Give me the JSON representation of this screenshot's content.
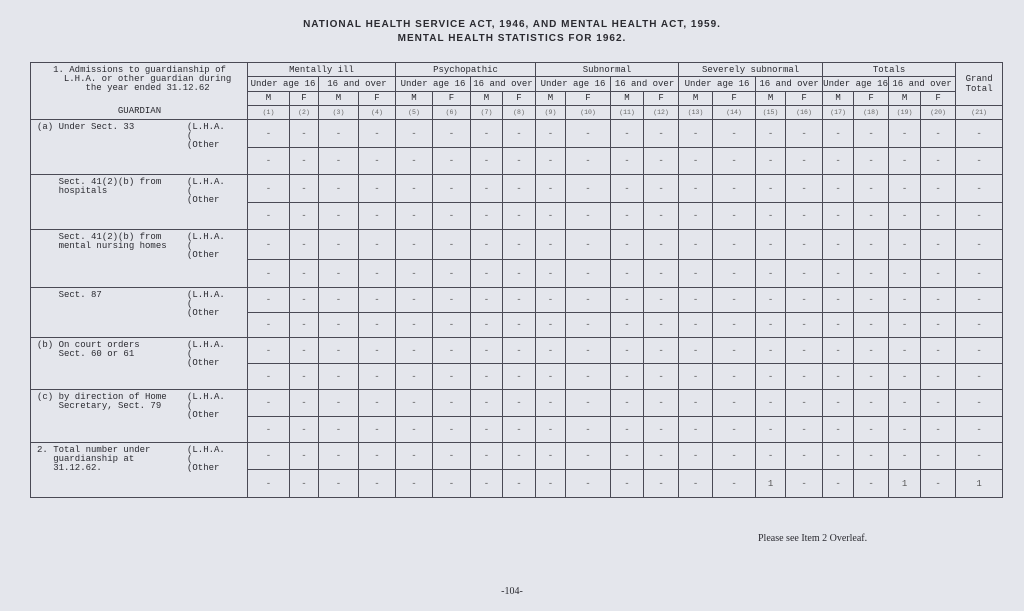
{
  "title_line1": "NATIONAL HEALTH SERVICE ACT, 1946, AND MENTAL HEALTH ACT, 1959.",
  "title_line2": "MENTAL HEALTH STATISTICS FOR 1962.",
  "table": {
    "lead_text": "1. Admissions to guardianship of\n   L.H.A. or other guardian during\n   the year ended 31.12.62",
    "guardian_label": "GUARDIAN",
    "groups": [
      "Mentally ill",
      "Psychopathic",
      "Subnormal",
      "Severely subnormal",
      "Totals"
    ],
    "age_bands": [
      "Under age 16",
      "16 and over"
    ],
    "sexes": [
      "M",
      "F"
    ],
    "grand_total": "Grand Total",
    "column_numbers": [
      "(1)",
      "(2)",
      "(3)",
      "(4)",
      "(5)",
      "(6)",
      "(7)",
      "(8)",
      "(9)",
      "(10)",
      "(11)",
      "(12)",
      "(13)",
      "(14)",
      "(15)",
      "(16)",
      "(17)",
      "(18)",
      "(19)",
      "(20)",
      "(21)"
    ],
    "sections": [
      {
        "label": "(a) Under Sect. 33",
        "sub": "(L.H.A.\n(\n(Other",
        "rows": [
          [
            "-",
            "-",
            "-",
            "-",
            "-",
            "-",
            "-",
            "-",
            "-",
            "-",
            "-",
            "-",
            "-",
            "-",
            "-",
            "-",
            "-",
            "-",
            "-",
            "-",
            "-"
          ],
          [
            "-",
            "-",
            "-",
            "-",
            "-",
            "-",
            "-",
            "-",
            "-",
            "-",
            "-",
            "-",
            "-",
            "-",
            "-",
            "-",
            "-",
            "-",
            "-",
            "-",
            "-"
          ]
        ]
      },
      {
        "label": "    Sect. 41(2)(b) from\n    hospitals",
        "sub": "(L.H.A.\n(\n(Other",
        "rows": [
          [
            "-",
            "-",
            "-",
            "-",
            "-",
            "-",
            "-",
            "-",
            "-",
            "-",
            "-",
            "-",
            "-",
            "-",
            "-",
            "-",
            "-",
            "-",
            "-",
            "-",
            "-"
          ],
          [
            "-",
            "-",
            "-",
            "-",
            "-",
            "-",
            "-",
            "-",
            "-",
            "-",
            "-",
            "-",
            "-",
            "-",
            "-",
            "-",
            "-",
            "-",
            "-",
            "-",
            "-"
          ]
        ]
      },
      {
        "label": "    Sect. 41(2)(b) from\n    mental nursing homes",
        "sub": "(L.H.A.\n(\n(Other",
        "rows": [
          [
            "-",
            "-",
            "-",
            "-",
            "-",
            "-",
            "-",
            "-",
            "-",
            "-",
            "-",
            "-",
            "-",
            "-",
            "-",
            "-",
            "-",
            "-",
            "-",
            "-",
            "-"
          ],
          [
            "-",
            "-",
            "-",
            "-",
            "-",
            "-",
            "-",
            "-",
            "-",
            "-",
            "-",
            "-",
            "-",
            "-",
            "-",
            "-",
            "-",
            "-",
            "-",
            "-",
            "-"
          ]
        ]
      },
      {
        "label": "    Sect. 87",
        "sub": "(L.H.A.\n(\n(Other",
        "rows": [
          [
            "-",
            "-",
            "-",
            "-",
            "-",
            "-",
            "-",
            "-",
            "-",
            "-",
            "-",
            "-",
            "-",
            "-",
            "-",
            "-",
            "-",
            "-",
            "-",
            "-",
            "-"
          ],
          [
            "-",
            "-",
            "-",
            "-",
            "-",
            "-",
            "-",
            "-",
            "-",
            "-",
            "-",
            "-",
            "-",
            "-",
            "-",
            "-",
            "-",
            "-",
            "-",
            "-",
            "-"
          ]
        ]
      },
      {
        "label": "(b) On court orders\n    Sect. 60 or 61",
        "sub": "(L.H.A.\n(\n(Other",
        "rows": [
          [
            "-",
            "-",
            "-",
            "-",
            "-",
            "-",
            "-",
            "-",
            "-",
            "-",
            "-",
            "-",
            "-",
            "-",
            "-",
            "-",
            "-",
            "-",
            "-",
            "-",
            "-"
          ],
          [
            "-",
            "-",
            "-",
            "-",
            "-",
            "-",
            "-",
            "-",
            "-",
            "-",
            "-",
            "-",
            "-",
            "-",
            "-",
            "-",
            "-",
            "-",
            "-",
            "-",
            "-"
          ]
        ]
      },
      {
        "label": "(c) by direction of Home\n    Secretary, Sect. 79",
        "sub": "(L.H.A.\n(\n(Other",
        "rows": [
          [
            "-",
            "-",
            "-",
            "-",
            "-",
            "-",
            "-",
            "-",
            "-",
            "-",
            "-",
            "-",
            "-",
            "-",
            "-",
            "-",
            "-",
            "-",
            "-",
            "-",
            "-"
          ],
          [
            "-",
            "-",
            "-",
            "-",
            "-",
            "-",
            "-",
            "-",
            "-",
            "-",
            "-",
            "-",
            "-",
            "-",
            "-",
            "-",
            "-",
            "-",
            "-",
            "-",
            "-"
          ]
        ]
      },
      {
        "label": "2. Total number under\n   guardianship at\n   31.12.62.",
        "sub": "(L.H.A.\n(\n(Other",
        "rows": [
          [
            "-",
            "-",
            "-",
            "-",
            "-",
            "-",
            "-",
            "-",
            "-",
            "-",
            "-",
            "-",
            "-",
            "-",
            "-",
            "-",
            "-",
            "-",
            "-",
            "-",
            "-"
          ],
          [
            "-",
            "-",
            "-",
            "-",
            "-",
            "-",
            "-",
            "-",
            "-",
            "-",
            "-",
            "-",
            "-",
            "-",
            "1",
            "-",
            "-",
            "-",
            "1",
            "-",
            "1"
          ]
        ]
      }
    ]
  },
  "footer_note": "Please see Item 2 Overleaf.",
  "page_number": "-104-"
}
